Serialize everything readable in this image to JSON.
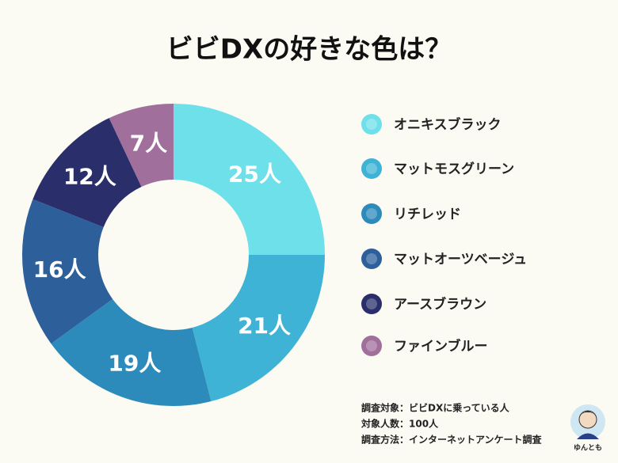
{
  "chart_data": {
    "type": "donut",
    "title": "ビビDXの好きな色は？",
    "categories": [
      "オニキスブラック",
      "マットモスグリーン",
      "リチレッド",
      "マットオーツベージュ",
      "アースブラウン",
      "ファインブルー"
    ],
    "values": [
      25,
      21,
      19,
      16,
      12,
      7
    ],
    "value_labels": [
      "25人",
      "21人",
      "19人",
      "16人",
      "12人",
      "7人"
    ],
    "colors": [
      "#6ee0e9",
      "#3fb3d5",
      "#2c8bbb",
      "#2d5f9b",
      "#2a2f6b",
      "#a06f9c"
    ],
    "notes": [
      "調査対象：ビビDXに乗っている人",
      "対象人数：100人",
      "調査方法：インターネットアンケート調査"
    ],
    "author": "ゆんとも"
  }
}
